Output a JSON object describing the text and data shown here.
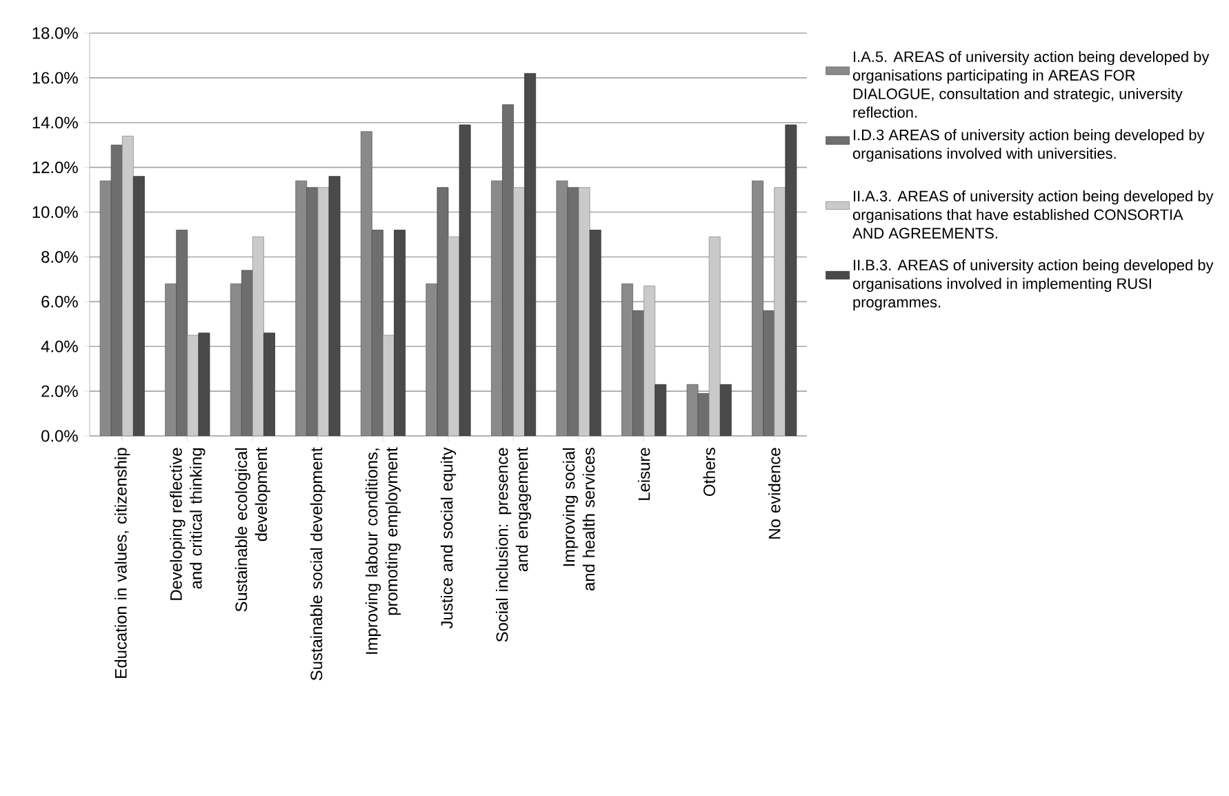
{
  "chart_data": {
    "type": "bar",
    "categories": [
      "Education in values, citizenship",
      "Developing reflective and critical thinking",
      "Sustainable ecological development",
      "Sustainable social development",
      "Improving labour conditions, promoting employment",
      "Justice and social equity",
      "Social inclusion: presence and engagement",
      "Improving social and health services",
      "Leisure",
      "Others",
      "No evidence"
    ],
    "series": [
      {
        "name": "I.A.5. AREAS of university action being developed by organisations participating in AREAS FOR DIALOGUE, consultation and strategic, university reflection.",
        "color": "#8a8a8a",
        "values": [
          11.4,
          6.8,
          6.8,
          11.4,
          13.6,
          6.8,
          11.4,
          11.4,
          6.8,
          2.3,
          11.4
        ]
      },
      {
        "name": "I.D.3 AREAS of university action being developed by organisations involved with universities.",
        "color": "#6e6e6e",
        "values": [
          13.0,
          9.2,
          7.4,
          11.1,
          9.2,
          11.1,
          14.8,
          11.1,
          5.6,
          1.9,
          5.6
        ]
      },
      {
        "name": "II.A.3. AREAS of university action being developed by organisations that have established CONSORTIA AND AGREEMENTS.",
        "color": "#cacaca",
        "values": [
          13.4,
          4.5,
          8.9,
          11.1,
          4.5,
          8.9,
          11.1,
          11.1,
          6.7,
          8.9,
          11.1
        ]
      },
      {
        "name": "II.B.3. AREAS of university action being developed by organisations involved in implementing RUSI programmes.",
        "color": "#4a4a4a",
        "values": [
          11.6,
          4.6,
          4.6,
          11.6,
          9.2,
          13.9,
          16.2,
          9.2,
          2.3,
          2.3,
          13.9
        ]
      }
    ],
    "ylim": [
      0,
      18
    ],
    "yticks": [
      {
        "value": 0,
        "label": "0.0%"
      },
      {
        "value": 2,
        "label": "2.0%"
      },
      {
        "value": 4,
        "label": "4.0%"
      },
      {
        "value": 6,
        "label": "6.0%"
      },
      {
        "value": 8,
        "label": "8.0%"
      },
      {
        "value": 10,
        "label": "10.0%"
      },
      {
        "value": 12,
        "label": "12.0%"
      },
      {
        "value": 14,
        "label": "14.0%"
      },
      {
        "value": 16,
        "label": "16.0%"
      },
      {
        "value": 18,
        "label": "18.0%"
      }
    ],
    "grid": "y",
    "legend": "right"
  }
}
